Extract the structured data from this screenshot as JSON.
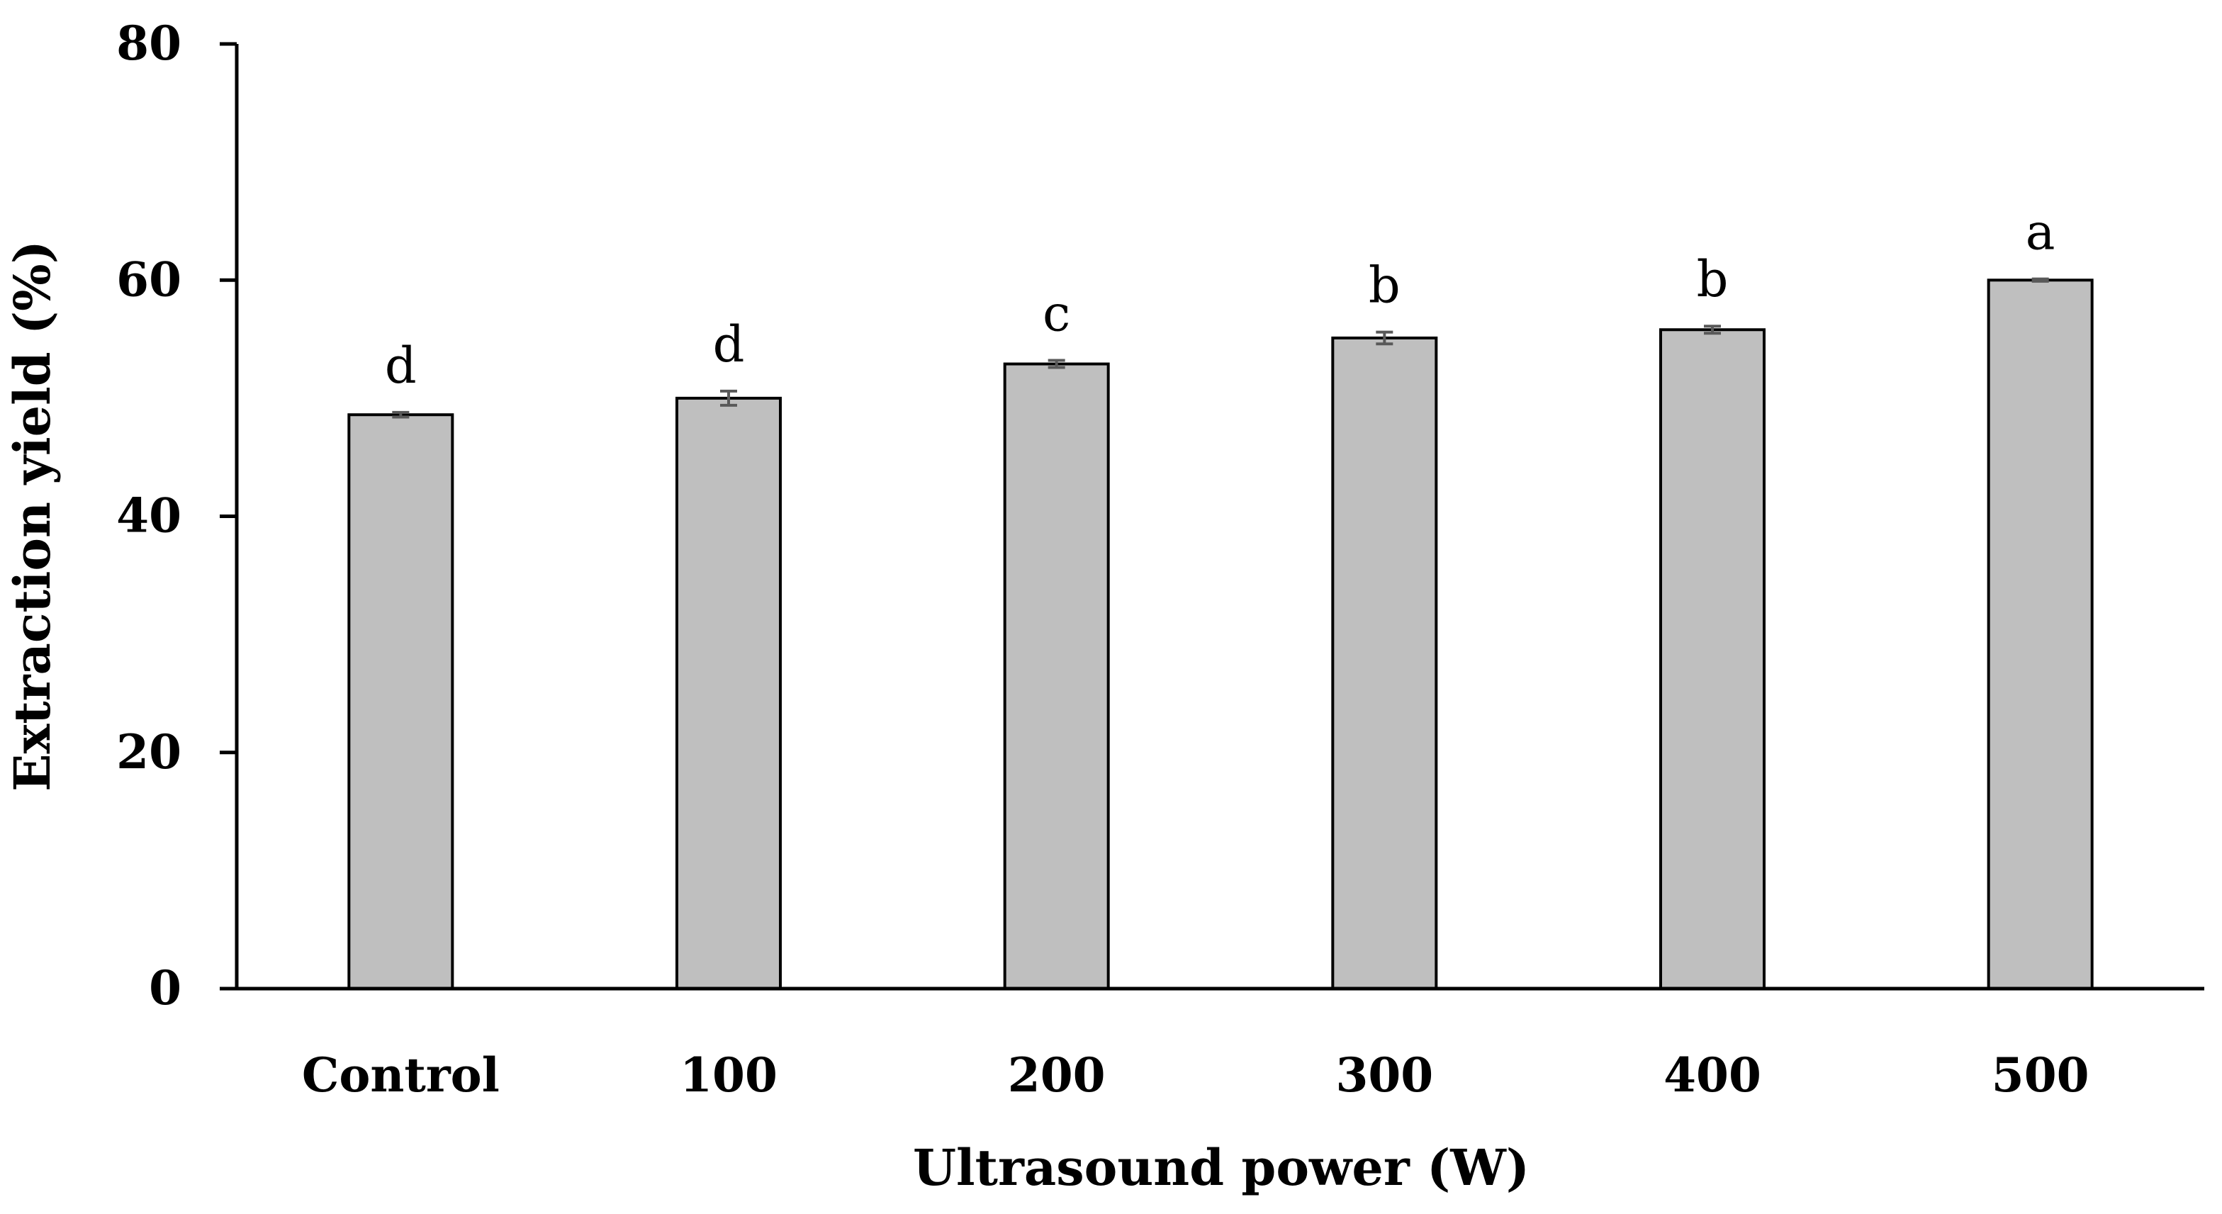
{
  "chart_data": {
    "type": "bar",
    "title": "",
    "xlabel": "Ultrasound power (W)",
    "ylabel": "Extraction yield (%)",
    "categories": [
      "Control",
      "100",
      "200",
      "300",
      "400",
      "500"
    ],
    "values": [
      48.6,
      50.0,
      52.9,
      55.1,
      55.8,
      60.0
    ],
    "errors": [
      0.2,
      0.6,
      0.3,
      0.5,
      0.3,
      0.1
    ],
    "significance_letters": [
      "d",
      "d",
      "c",
      "b",
      "b",
      "a"
    ],
    "yticks": [
      "0",
      "20",
      "40",
      "60",
      "80"
    ],
    "ylim": [
      0,
      80
    ],
    "grid": false,
    "legend": "none",
    "bar_color": "#bfbfbf",
    "error_bar_color": "#595959"
  }
}
